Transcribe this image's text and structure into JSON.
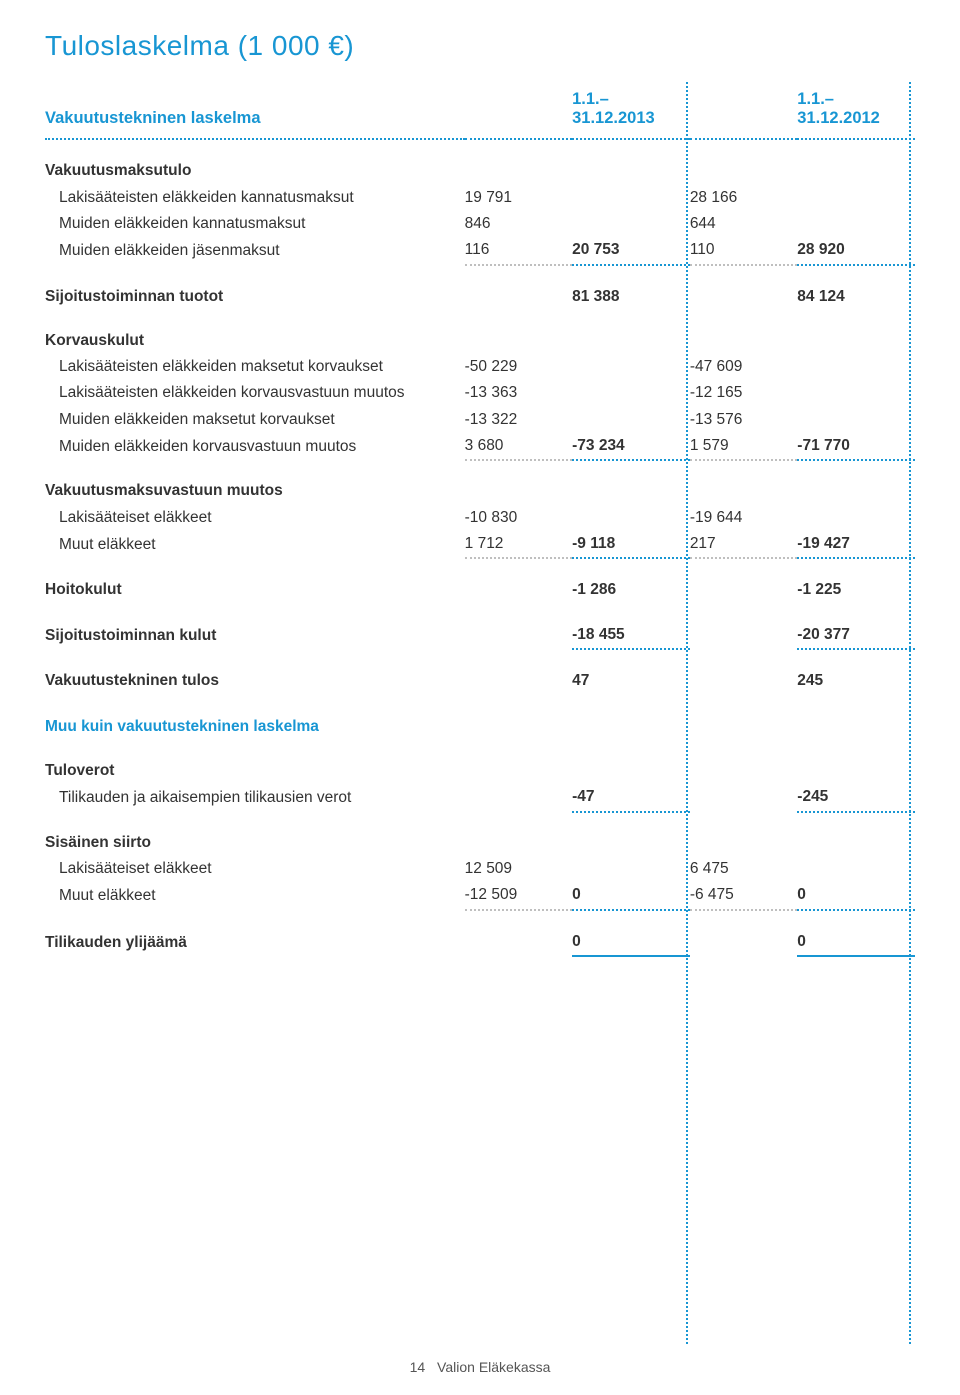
{
  "title": "Tuloslaskelma (1 000 €)",
  "colors": {
    "accent": "#1896d3",
    "text": "#333333",
    "bg": "#ffffff",
    "dotGrey": "#bfbfbf",
    "footer": "#555555"
  },
  "header": {
    "label": "Vakuutustekninen laskelma",
    "period1": "1.1.–31.12.2013",
    "period2": "1.1.–31.12.2012"
  },
  "sections": {
    "vakmaks": {
      "title": "Vakuutusmaksutulo",
      "rows": {
        "r1": {
          "label": "Lakisääteisten eläkkeiden kannatusmaksut",
          "c1": "19 791",
          "c3": "28 166"
        },
        "r2": {
          "label": "Muiden eläkkeiden kannatusmaksut",
          "c1": "846",
          "c3": "644"
        },
        "r3": {
          "label": "Muiden eläkkeiden jäsenmaksut",
          "c1": "116",
          "c2": "20 753",
          "c3": "110",
          "c4": "28 920"
        }
      }
    },
    "sijt": {
      "label": "Sijoitustoiminnan tuotot",
      "c2": "81 388",
      "c4": "84 124"
    },
    "korv": {
      "title": "Korvauskulut",
      "rows": {
        "r1": {
          "label": "Lakisääteisten eläkkeiden maksetut korvaukset",
          "c1": "-50 229",
          "c3": "-47 609"
        },
        "r2": {
          "label": "Lakisääteisten eläkkeiden korvausvastuun muutos",
          "c1": "-13 363",
          "c3": "-12  165"
        },
        "r3": {
          "label": "Muiden eläkkeiden maksetut korvaukset",
          "c1": "-13 322",
          "c3": "-13 576"
        },
        "r4": {
          "label": "Muiden eläkkeiden korvausvastuun muutos",
          "c1": "3 680",
          "c2": "-73 234",
          "c3": "1 579",
          "c4": "-71 770"
        }
      }
    },
    "vmvm": {
      "title": "Vakuutusmaksuvastuun muutos",
      "rows": {
        "r1": {
          "label": "Lakisääteiset eläkkeet",
          "c1": "-10 830",
          "c3": "-19 644"
        },
        "r2": {
          "label": "Muut eläkkeet",
          "c1": "1 712",
          "c2": "-9 118",
          "c3": "217",
          "c4": "-19 427"
        }
      }
    },
    "hoito": {
      "label": "Hoitokulut",
      "c2": "-1 286",
      "c4": "-1 225"
    },
    "sijk": {
      "label": "Sijoitustoiminnan kulut",
      "c2": "-18 455",
      "c4": "-20 377"
    },
    "vtulos": {
      "label": "Vakuutustekninen tulos",
      "c2": "47",
      "c4": "245"
    },
    "muu": {
      "title": "Muu kuin vakuutustekninen laskelma"
    },
    "tulov": {
      "title": "Tuloverot",
      "rows": {
        "r1": {
          "label": "Tilikauden ja aikaisempien tilikausien verot",
          "c2": "-47",
          "c4": "-245"
        }
      }
    },
    "sis": {
      "title": "Sisäinen siirto",
      "rows": {
        "r1": {
          "label": "Lakisääteiset eläkkeet",
          "c1": "12 509",
          "c3": "6 475"
        },
        "r2": {
          "label": "Muut eläkkeet",
          "c1": "-12 509",
          "c2": "0",
          "c3": "-6 475",
          "c4": "0"
        }
      }
    },
    "ylij": {
      "label": "Tilikauden ylijäämä",
      "c2": "0",
      "c4": "0"
    }
  },
  "footer": {
    "page": "14",
    "name": "Valion Eläkekassa"
  }
}
